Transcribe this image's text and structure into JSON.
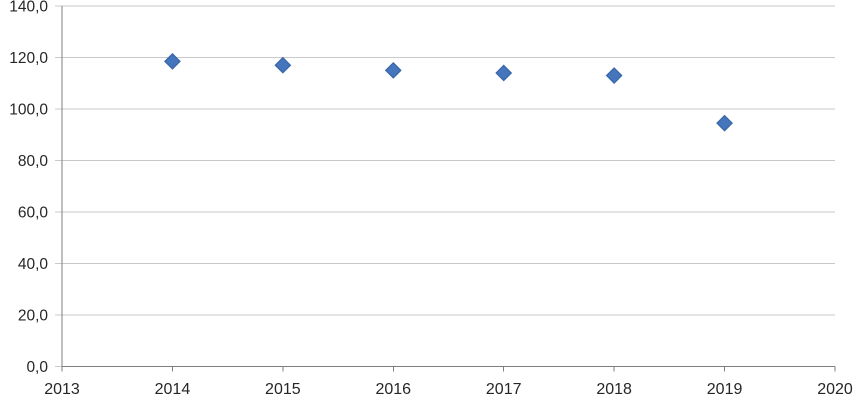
{
  "chart_data": {
    "type": "scatter",
    "title": "",
    "xlabel": "",
    "ylabel": "",
    "x": [
      2014,
      2015,
      2016,
      2017,
      2018,
      2019
    ],
    "y": [
      118.5,
      117.0,
      115.0,
      114.0,
      113.0,
      94.5
    ],
    "xlim": [
      2013,
      2020
    ],
    "ylim": [
      0,
      140
    ],
    "x_ticks": [
      2013,
      2014,
      2015,
      2016,
      2017,
      2018,
      2019,
      2020
    ],
    "y_ticks": [
      0,
      20,
      40,
      60,
      80,
      100,
      120,
      140
    ],
    "x_tick_labels": [
      "2013",
      "2014",
      "2015",
      "2016",
      "2017",
      "2018",
      "2019",
      "2020"
    ],
    "y_tick_labels": [
      "0,0",
      "20,0",
      "40,0",
      "60,0",
      "80,0",
      "100,0",
      "120,0",
      "140,0"
    ],
    "grid": "horizontal",
    "legend": "none",
    "marker": "diamond",
    "decimal_separator": ","
  },
  "colors": {
    "marker_fill": "#4575BD",
    "marker_border": "#3A67A8",
    "gridline": "#C9C9C9",
    "axis": "#7F7F7F",
    "tick_label": "#262626",
    "background": "#FFFFFF"
  }
}
